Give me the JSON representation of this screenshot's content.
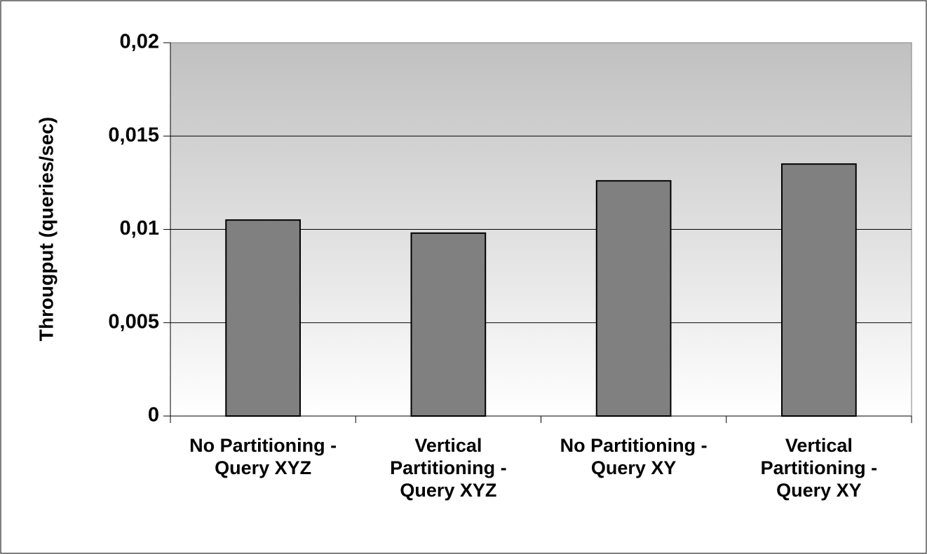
{
  "chart_data": {
    "type": "bar",
    "y_label": "Througput (queries/sec)",
    "categories": [
      "No Partitioning - Query XYZ",
      "Vertical Partitioning - Query XYZ",
      "No Partitioning - Query XY",
      "Vertical Partitioning - Query XY"
    ],
    "values": [
      0.0105,
      0.0098,
      0.0126,
      0.0135
    ],
    "color": "#808080",
    "ylim": [
      0,
      0.02
    ],
    "yticks": [
      0,
      {
        "value": 0.005,
        "label": "0,005"
      },
      {
        "value": 0.01,
        "label": "0,01"
      },
      {
        "value": 0.015,
        "label": "0,015"
      },
      {
        "value": 0.02,
        "label": "0,02"
      }
    ],
    "grid": true
  }
}
